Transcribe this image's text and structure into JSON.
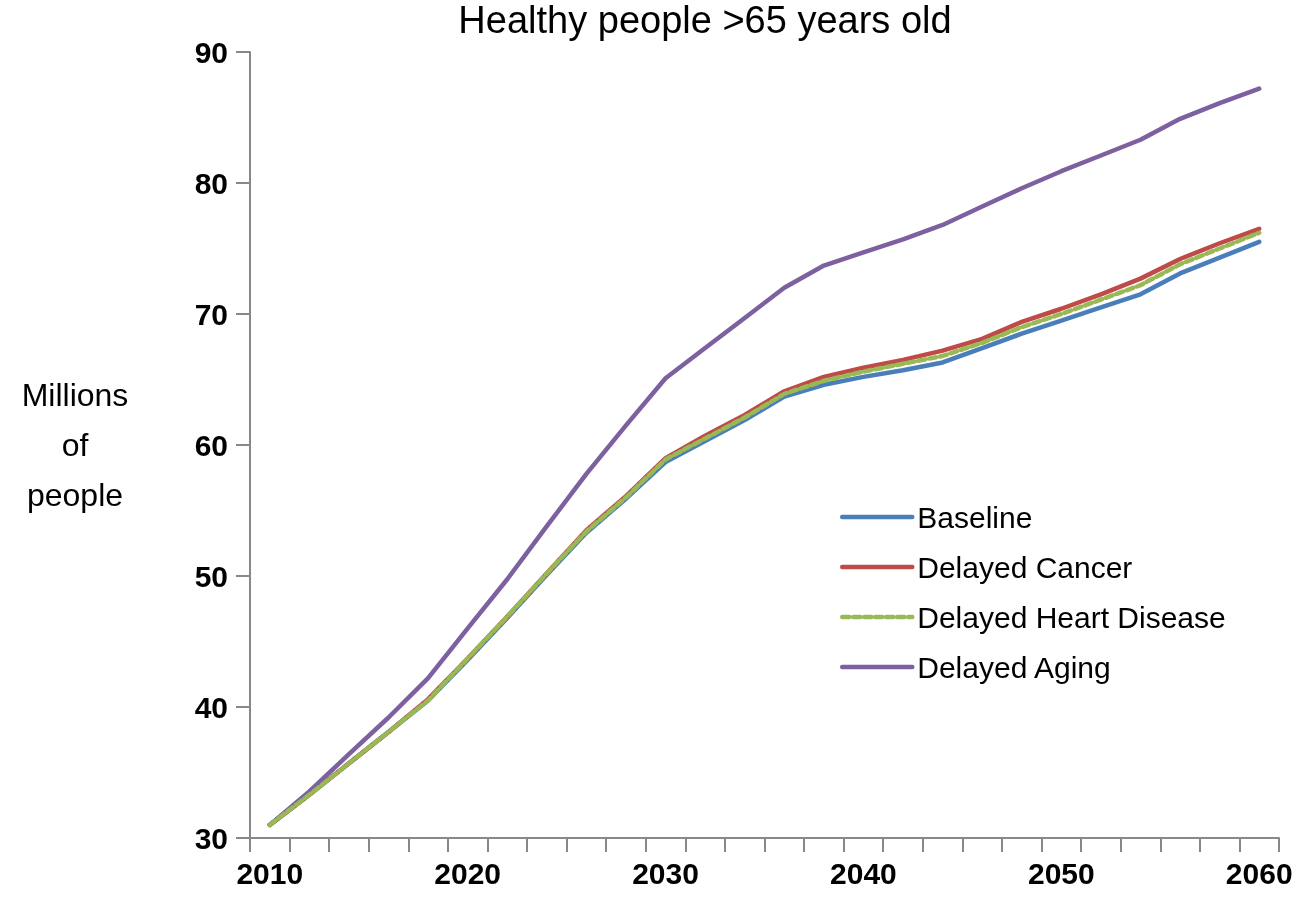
{
  "chart_data": {
    "type": "line",
    "title": "Healthy people >65 years old",
    "ylabel": "Millions of people",
    "categories": [
      "2010",
      null,
      null,
      null,
      null,
      "2020",
      null,
      null,
      null,
      null,
      "2030",
      null,
      null,
      null,
      null,
      "2040",
      null,
      null,
      null,
      null,
      "2050",
      null,
      null,
      null,
      null,
      "2060"
    ],
    "series": [
      {
        "name": "Baseline",
        "color": "#4a7ebb",
        "line_style": "solid",
        "values": [
          31.0,
          33.3,
          35.7,
          38.1,
          40.5,
          43.6,
          46.8,
          50.1,
          53.3,
          55.9,
          58.7,
          60.3,
          61.9,
          63.7,
          64.6,
          65.2,
          65.7,
          66.3,
          67.4,
          68.5,
          69.5,
          70.5,
          71.5,
          73.1,
          74.3,
          75.5
        ]
      },
      {
        "name": "Delayed Cancer",
        "color": "#be4b48",
        "line_style": "solid",
        "values": [
          31.0,
          33.3,
          35.7,
          38.1,
          40.6,
          43.7,
          46.9,
          50.2,
          53.5,
          56.1,
          59.0,
          60.7,
          62.3,
          64.1,
          65.2,
          65.9,
          66.5,
          67.2,
          68.1,
          69.4,
          70.4,
          71.5,
          72.7,
          74.2,
          75.4,
          76.5
        ]
      },
      {
        "name": "Delayed Heart Disease",
        "color": "#98b954",
        "line_style": "dashed",
        "values": [
          31.0,
          33.3,
          35.7,
          38.1,
          40.5,
          43.7,
          46.9,
          50.2,
          53.4,
          56.0,
          58.9,
          60.5,
          62.1,
          63.9,
          64.9,
          65.6,
          66.2,
          66.8,
          67.8,
          69.0,
          70.0,
          71.1,
          72.2,
          73.8,
          75.0,
          76.2
        ]
      },
      {
        "name": "Delayed Aging",
        "color": "#7d60a0",
        "line_style": "solid",
        "values": [
          31.0,
          33.55,
          36.4,
          39.2,
          42.2,
          46.0,
          49.75,
          53.8,
          57.8,
          61.5,
          65.1,
          67.4,
          69.7,
          72.0,
          73.7,
          74.7,
          75.7,
          76.8,
          78.2,
          79.6,
          80.9,
          82.1,
          83.3,
          84.9,
          86.1,
          87.2
        ]
      }
    ],
    "ylim": [
      30,
      90
    ],
    "yticks": [
      30,
      40,
      50,
      60,
      70,
      80,
      90
    ],
    "grid": false,
    "legend": "right",
    "marker": "none"
  }
}
